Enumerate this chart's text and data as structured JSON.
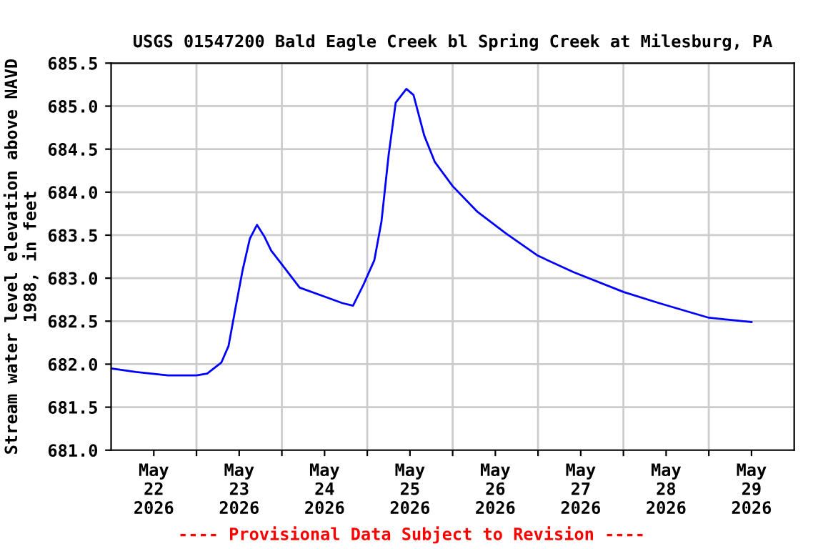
{
  "chart_data": {
    "type": "line",
    "title": "USGS 01547200 Bald Eagle Creek bl Spring Creek at Milesburg, PA",
    "ylabel": "Stream water level elevation above NAVD\n1988, in feet",
    "annotations": [
      "---- Provisional Data Subject to Revision ----"
    ],
    "x": [
      "2026-05-22T00:00",
      "2026-05-22T07:00",
      "2026-05-22T16:00",
      "2026-05-23T00:00",
      "2026-05-23T03:00",
      "2026-05-23T07:00",
      "2026-05-23T09:00",
      "2026-05-23T11:00",
      "2026-05-23T13:00",
      "2026-05-23T15:00",
      "2026-05-23T17:00",
      "2026-05-23T19:00",
      "2026-05-23T21:00",
      "2026-05-24T00:00",
      "2026-05-24T05:00",
      "2026-05-24T13:00",
      "2026-05-24T17:00",
      "2026-05-24T20:00",
      "2026-05-24T23:00",
      "2026-05-25T02:00",
      "2026-05-25T04:00",
      "2026-05-25T06:00",
      "2026-05-25T08:00",
      "2026-05-25T11:00",
      "2026-05-25T13:00",
      "2026-05-25T16:00",
      "2026-05-25T19:00",
      "2026-05-26T00:00",
      "2026-05-26T07:00",
      "2026-05-26T15:00",
      "2026-05-27T00:00",
      "2026-05-27T10:00",
      "2026-05-28T00:00",
      "2026-05-28T10:00",
      "2026-05-29T00:00",
      "2026-05-29T12:00"
    ],
    "series": [
      {
        "color": "#0000ff",
        "values": [
          681.95,
          681.91,
          681.87,
          681.87,
          681.89,
          682.02,
          682.21,
          682.66,
          683.1,
          683.46,
          683.62,
          683.49,
          683.32,
          683.16,
          682.89,
          682.77,
          682.71,
          682.68,
          682.93,
          683.21,
          683.66,
          684.43,
          685.04,
          685.2,
          685.13,
          684.66,
          684.35,
          684.07,
          683.77,
          683.52,
          683.26,
          683.07,
          682.84,
          682.71,
          682.54,
          682.49
        ]
      }
    ],
    "xlim": [
      "2026-05-22T00:00",
      "2026-05-30T00:00"
    ],
    "xticks": [
      {
        "value": "2026-05-22T12:00",
        "label": "May\n22\n2026"
      },
      {
        "value": "2026-05-23T00:00",
        "label": null
      },
      {
        "value": "2026-05-23T12:00",
        "label": "May\n23\n2026"
      },
      {
        "value": "2026-05-24T00:00",
        "label": null
      },
      {
        "value": "2026-05-24T12:00",
        "label": "May\n24\n2026"
      },
      {
        "value": "2026-05-25T00:00",
        "label": null
      },
      {
        "value": "2026-05-25T12:00",
        "label": "May\n25\n2026"
      },
      {
        "value": "2026-05-26T00:00",
        "label": null
      },
      {
        "value": "2026-05-26T12:00",
        "label": "May\n26\n2026"
      },
      {
        "value": "2026-05-27T00:00",
        "label": null
      },
      {
        "value": "2026-05-27T12:00",
        "label": "May\n27\n2026"
      },
      {
        "value": "2026-05-28T00:00",
        "label": null
      },
      {
        "value": "2026-05-28T12:00",
        "label": "May\n28\n2026"
      },
      {
        "value": "2026-05-29T00:00",
        "label": null
      },
      {
        "value": "2026-05-29T12:00",
        "label": "May\n29\n2026"
      }
    ],
    "ylim": [
      681.0,
      685.5
    ],
    "yticks": [
      {
        "value": 681.0,
        "label": "681.0"
      },
      {
        "value": 681.5,
        "label": "681.5"
      },
      {
        "value": 682.0,
        "label": "682.0"
      },
      {
        "value": 682.5,
        "label": "682.5"
      },
      {
        "value": 683.0,
        "label": "683.0"
      },
      {
        "value": 683.5,
        "label": "683.5"
      },
      {
        "value": 684.0,
        "label": "684.0"
      },
      {
        "value": 684.5,
        "label": "684.5"
      },
      {
        "value": 685.0,
        "label": "685.0"
      },
      {
        "value": 685.5,
        "label": "685.5"
      }
    ],
    "grid": true,
    "legend": false,
    "marker": "none",
    "line_style": "solid"
  }
}
